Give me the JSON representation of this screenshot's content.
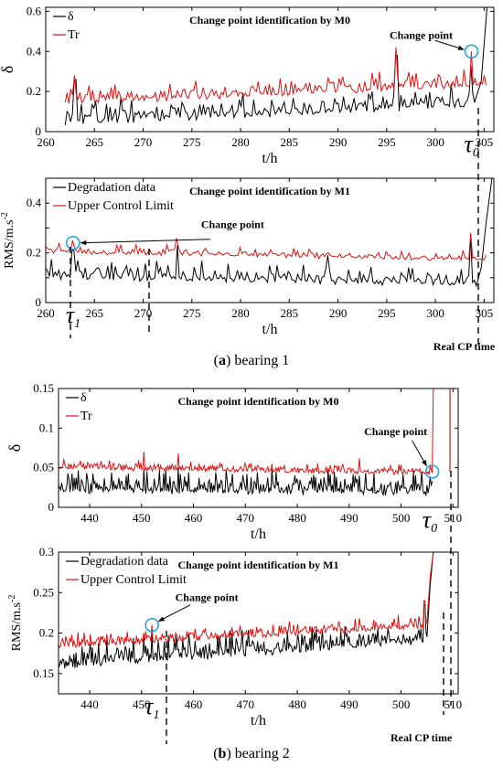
{
  "colors": {
    "signal": "#000000",
    "threshold": "#e01010",
    "marker": "#1aa3e0",
    "axis": "#000000"
  },
  "captions": [
    {
      "letter": "a",
      "text": "bearing 1"
    },
    {
      "letter": "b",
      "text": "bearing 2"
    }
  ],
  "chart_data": [
    {
      "type": "line",
      "title": "Change point identification by M0",
      "xlabel": "t/h",
      "ylabel": "δ",
      "xlim": [
        260,
        306
      ],
      "ylim": [
        0,
        0.62
      ],
      "xticks": [
        260,
        265,
        270,
        275,
        280,
        285,
        290,
        295,
        300,
        305
      ],
      "yticks": [
        0,
        0.2,
        0.4,
        0.6
      ],
      "ytick_labels": [
        "0",
        "0.2",
        "0.4",
        "0.6"
      ],
      "legend": "top-left",
      "series": [
        {
          "name": "δ",
          "color": "#000000",
          "seed": 11,
          "x_start": 262,
          "x_end": 304.2,
          "n": 230,
          "base": 0.04,
          "base_end": 0.13,
          "noise": 0.11,
          "spikes": [
            [
              263.0,
              0.26
            ],
            [
              296.0,
              0.38
            ],
            [
              303.7,
              0.33
            ]
          ],
          "tail": [
            [
              304.7,
              0.25
            ],
            [
              305.3,
              0.62
            ]
          ]
        },
        {
          "name": "Tr",
          "color": "#e01010",
          "seed": 12,
          "x_start": 262,
          "x_end": 305.2,
          "n": 230,
          "base": 0.14,
          "base_end": 0.23,
          "noise": 0.09,
          "spikes": [
            [
              263.0,
              0.28
            ],
            [
              296.0,
              0.42
            ],
            [
              303.7,
              0.4
            ]
          ],
          "tail": []
        }
      ],
      "annotations": [
        {
          "label": "Change point",
          "x": 303.7,
          "y": 0.4,
          "marker": "circle"
        }
      ],
      "change_time": {
        "label": "τ",
        "subscript": "0",
        "x": 303.7
      }
    },
    {
      "type": "line",
      "title": "Change point identification by M1",
      "xlabel": "t/h",
      "ylabel": "RMS/m.s",
      "ylabel_sup": "-2",
      "xlim": [
        260,
        306
      ],
      "ylim": [
        0,
        0.5
      ],
      "xticks": [
        260,
        265,
        270,
        275,
        280,
        285,
        290,
        295,
        300,
        305
      ],
      "yticks": [
        0,
        0.1,
        0.2,
        0.3,
        0.4
      ],
      "ytick_labels": [
        "0",
        "",
        "0.2",
        "",
        "0.4"
      ],
      "legend": "top-left",
      "series": [
        {
          "name": "Degradation data",
          "color": "#000000",
          "seed": 21,
          "x_start": 260,
          "x_end": 304.2,
          "n": 230,
          "base": 0.1,
          "base_end": 0.07,
          "noise": 0.08,
          "spikes": [
            [
              262.8,
              0.21
            ],
            [
              273.5,
              0.23
            ],
            [
              289.0,
              0.19
            ],
            [
              303.6,
              0.27
            ]
          ],
          "tail": [
            [
              304.7,
              0.14
            ],
            [
              305.2,
              0.32
            ],
            [
              305.8,
              0.5
            ]
          ]
        },
        {
          "name": "Upper Control Limit",
          "color": "#e01010",
          "seed": 22,
          "x_start": 260,
          "x_end": 305.2,
          "n": 230,
          "base": 0.2,
          "base_end": 0.17,
          "noise": 0.04,
          "spikes": [
            [
              262.8,
              0.25
            ],
            [
              273.5,
              0.26
            ],
            [
              289.0,
              0.2
            ],
            [
              303.6,
              0.28
            ]
          ],
          "tail": []
        }
      ],
      "annotations": [
        {
          "label": "Change point",
          "x": 262.8,
          "y": 0.24,
          "marker": "circle"
        },
        {
          "label": "Real CP time",
          "x": 303.7,
          "y": -0.06,
          "marker": "none"
        }
      ],
      "change_time": {
        "label": "τ",
        "subscript": "1",
        "x": 262.8
      }
    },
    {
      "type": "line",
      "title": "Change point identification by M0",
      "xlabel": "t/h",
      "ylabel": "δ",
      "xlim": [
        434,
        511
      ],
      "ylim": [
        0,
        0.15
      ],
      "xticks": [
        440,
        450,
        460,
        470,
        480,
        490,
        500,
        510
      ],
      "yticks": [
        0,
        0.05,
        0.1,
        0.15
      ],
      "ytick_labels": [
        "0",
        "0.05",
        "0.1",
        "0.15"
      ],
      "legend": "top-left",
      "series": [
        {
          "name": "δ",
          "color": "#000000",
          "seed": 31,
          "x_start": 434,
          "x_end": 506,
          "n": 360,
          "base": 0.02,
          "base_end": 0.018,
          "noise": 0.028,
          "spikes": [
            [
              450.5,
              0.048
            ],
            [
              457.0,
              0.05
            ],
            [
              492.0,
              0.04
            ]
          ],
          "tail": []
        },
        {
          "name": "Tr",
          "color": "#e01010",
          "seed": 32,
          "x_start": 434,
          "x_end": 506,
          "n": 360,
          "base": 0.049,
          "base_end": 0.042,
          "noise": 0.012,
          "spikes": [
            [
              450.5,
              0.07
            ],
            [
              457.0,
              0.068
            ],
            [
              492.0,
              0.062
            ]
          ],
          "tail": [
            [
              506.2,
              0.15
            ]
          ]
        }
      ],
      "annotations": [
        {
          "label": "Change point",
          "x": 506.0,
          "y": 0.045,
          "marker": "circle"
        }
      ],
      "change_time": {
        "label": "τ",
        "subscript": "0",
        "x": 505.5
      }
    },
    {
      "type": "line",
      "title": "Change point identification by M1",
      "xlabel": "t/h",
      "ylabel": "RMS/m.s",
      "ylabel_sup": "-2",
      "xlim": [
        434,
        511
      ],
      "ylim": [
        0.125,
        0.3
      ],
      "xticks": [
        440,
        450,
        460,
        470,
        480,
        490,
        500,
        510
      ],
      "yticks": [
        0.15,
        0.2,
        0.25,
        0.3
      ],
      "ytick_labels": [
        "0.15",
        "0.2",
        "0.25",
        "0.3"
      ],
      "legend": "top-left",
      "series": [
        {
          "name": "Degradation data",
          "color": "#000000",
          "seed": 41,
          "x_start": 434,
          "x_end": 505,
          "n": 360,
          "base": 0.158,
          "base_end": 0.19,
          "noise": 0.028,
          "spikes": [
            [
              452.0,
              0.198
            ],
            [
              504.5,
              0.235
            ]
          ],
          "tail": [
            [
              505.6,
              0.26
            ],
            [
              506.2,
              0.3
            ]
          ]
        },
        {
          "name": "Upper Control Limit",
          "color": "#e01010",
          "seed": 42,
          "x_start": 434,
          "x_end": 505,
          "n": 360,
          "base": 0.183,
          "base_end": 0.207,
          "noise": 0.016,
          "spikes": [
            [
              452.0,
              0.21
            ],
            [
              504.5,
              0.24
            ]
          ],
          "tail": [
            [
              505.6,
              0.27
            ],
            [
              506.2,
              0.3
            ]
          ]
        }
      ],
      "annotations": [
        {
          "label": "Change point",
          "x": 452.0,
          "y": 0.21,
          "marker": "circle"
        },
        {
          "label": "Real CP time",
          "x": 505.3,
          "y": 0.1,
          "marker": "none"
        }
      ],
      "change_time": {
        "label": "τ",
        "subscript": "1",
        "x": 452.0
      }
    }
  ]
}
